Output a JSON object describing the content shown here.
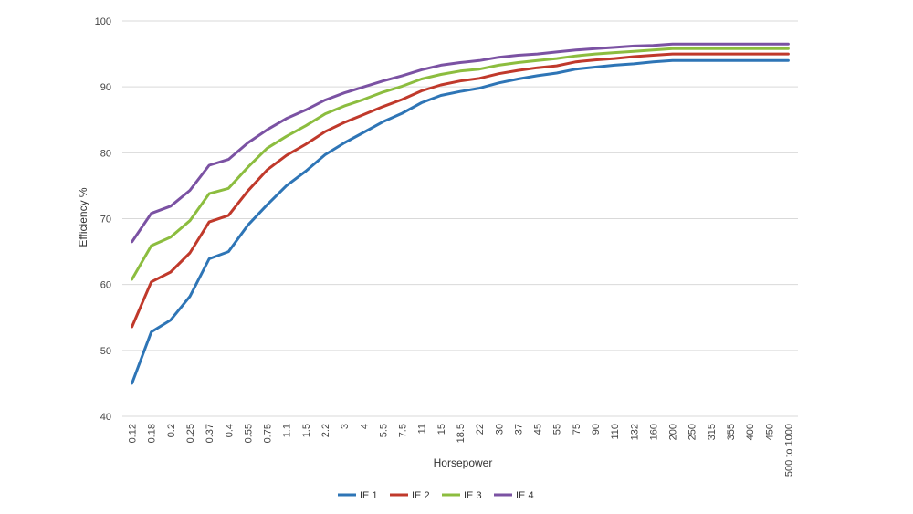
{
  "chart_data": {
    "type": "line",
    "xlabel": "Horsepower",
    "ylabel": "Efficiency %",
    "ylim": [
      40,
      100
    ],
    "yticks": [
      40,
      50,
      60,
      70,
      80,
      90,
      100
    ],
    "grid": "horizontal",
    "legend": "bottom",
    "categories": [
      "0.12",
      "0.18",
      "0.2",
      "0.25",
      "0.37",
      "0.4",
      "0.55",
      "0.75",
      "1.1",
      "1.5",
      "2.2",
      "3",
      "4",
      "5.5",
      "7.5",
      "11",
      "15",
      "18.5",
      "22",
      "30",
      "37",
      "45",
      "55",
      "75",
      "90",
      "110",
      "132",
      "160",
      "200",
      "250",
      "315",
      "355",
      "400",
      "450",
      "500 to 1000"
    ],
    "series": [
      {
        "name": "IE 1",
        "color": "#2e75b6",
        "values": [
          45.0,
          52.8,
          54.6,
          58.2,
          63.9,
          65.0,
          69.0,
          72.1,
          75.0,
          77.2,
          79.7,
          81.5,
          83.1,
          84.7,
          86.0,
          87.6,
          88.7,
          89.3,
          89.8,
          90.6,
          91.2,
          91.7,
          92.1,
          92.7,
          93.0,
          93.3,
          93.5,
          93.8,
          94.0,
          94.0,
          94.0,
          94.0,
          94.0,
          94.0,
          94.0
        ]
      },
      {
        "name": "IE 2",
        "color": "#c0392b",
        "values": [
          53.6,
          60.4,
          61.9,
          64.8,
          69.5,
          70.5,
          74.2,
          77.4,
          79.6,
          81.3,
          83.2,
          84.6,
          85.8,
          87.0,
          88.1,
          89.4,
          90.3,
          90.9,
          91.3,
          92.0,
          92.5,
          92.9,
          93.2,
          93.8,
          94.1,
          94.3,
          94.6,
          94.8,
          95.0,
          95.0,
          95.0,
          95.0,
          95.0,
          95.0,
          95.0
        ]
      },
      {
        "name": "IE 3",
        "color": "#8cbd3f",
        "values": [
          60.8,
          65.9,
          67.2,
          69.7,
          73.8,
          74.6,
          77.8,
          80.7,
          82.5,
          84.1,
          85.9,
          87.1,
          88.1,
          89.2,
          90.1,
          91.2,
          91.9,
          92.4,
          92.7,
          93.3,
          93.7,
          94.0,
          94.3,
          94.7,
          95.0,
          95.2,
          95.4,
          95.6,
          95.8,
          95.8,
          95.8,
          95.8,
          95.8,
          95.8,
          95.8
        ]
      },
      {
        "name": "IE 4",
        "color": "#7b52a3",
        "values": [
          66.5,
          70.8,
          71.9,
          74.3,
          78.1,
          79.0,
          81.5,
          83.5,
          85.2,
          86.5,
          88.0,
          89.1,
          90.0,
          90.9,
          91.7,
          92.6,
          93.3,
          93.7,
          94.0,
          94.5,
          94.8,
          95.0,
          95.3,
          95.6,
          95.8,
          96.0,
          96.2,
          96.3,
          96.5,
          96.5,
          96.5,
          96.5,
          96.5,
          96.5,
          96.5
        ]
      }
    ]
  }
}
